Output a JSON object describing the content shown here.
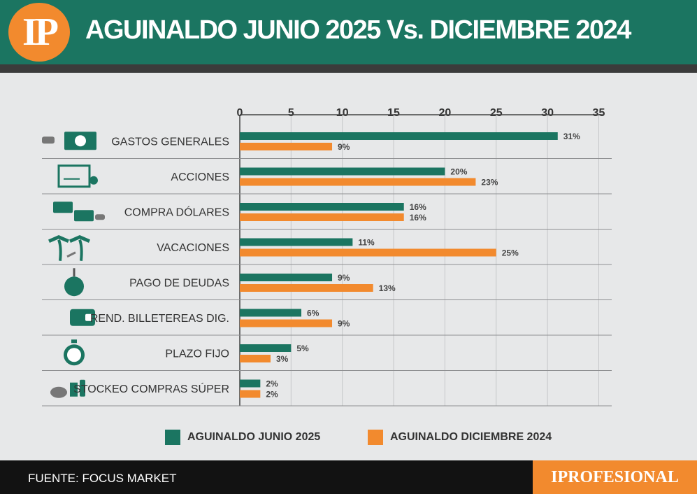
{
  "header": {
    "logo": "IP",
    "title": "AGUINALDO JUNIO 2025 Vs. DICIEMBRE 2024"
  },
  "colors": {
    "series_2025": "#1b7561",
    "series_2024": "#f28a2e",
    "header_bg": "#1b7561",
    "background": "#e7e8e9"
  },
  "chart_data": {
    "type": "bar",
    "orientation": "horizontal",
    "axis_position": "top",
    "xlim": [
      0,
      35
    ],
    "xticks": [
      0,
      5,
      10,
      15,
      20,
      25,
      30,
      35
    ],
    "value_suffix": "%",
    "grid": true,
    "legend_placement": "bottom",
    "categories": [
      "GASTOS GENERALES",
      "ACCIONES",
      "COMPRA DÓLARES",
      "VACACIONES",
      "PAGO DE DEUDAS",
      "REND. BILLETEREAS DIG.",
      "PLAZO FIJO",
      "STOCKEO COMPRAS SÚPER"
    ],
    "category_icons": [
      "hand-banknote-icon",
      "stock-certificate-icon",
      "currency-exchange-icon",
      "palm-trees-beach-icon",
      "debt-ball-chain-icon",
      "digital-wallet-icon",
      "stopwatch-dollar-icon",
      "groceries-icon"
    ],
    "series": [
      {
        "name": "AGUINALDO JUNIO 2025",
        "color": "#1b7561",
        "values": [
          31,
          20,
          16,
          11,
          9,
          6,
          5,
          2
        ]
      },
      {
        "name": "AGUINALDO DICIEMBRE 2024",
        "color": "#f28a2e",
        "values": [
          9,
          23,
          16,
          25,
          13,
          9,
          3,
          2
        ]
      }
    ]
  },
  "footer": {
    "source": "FUENTE: FOCUS MARKET",
    "brand": "IPROFESIONAL"
  }
}
